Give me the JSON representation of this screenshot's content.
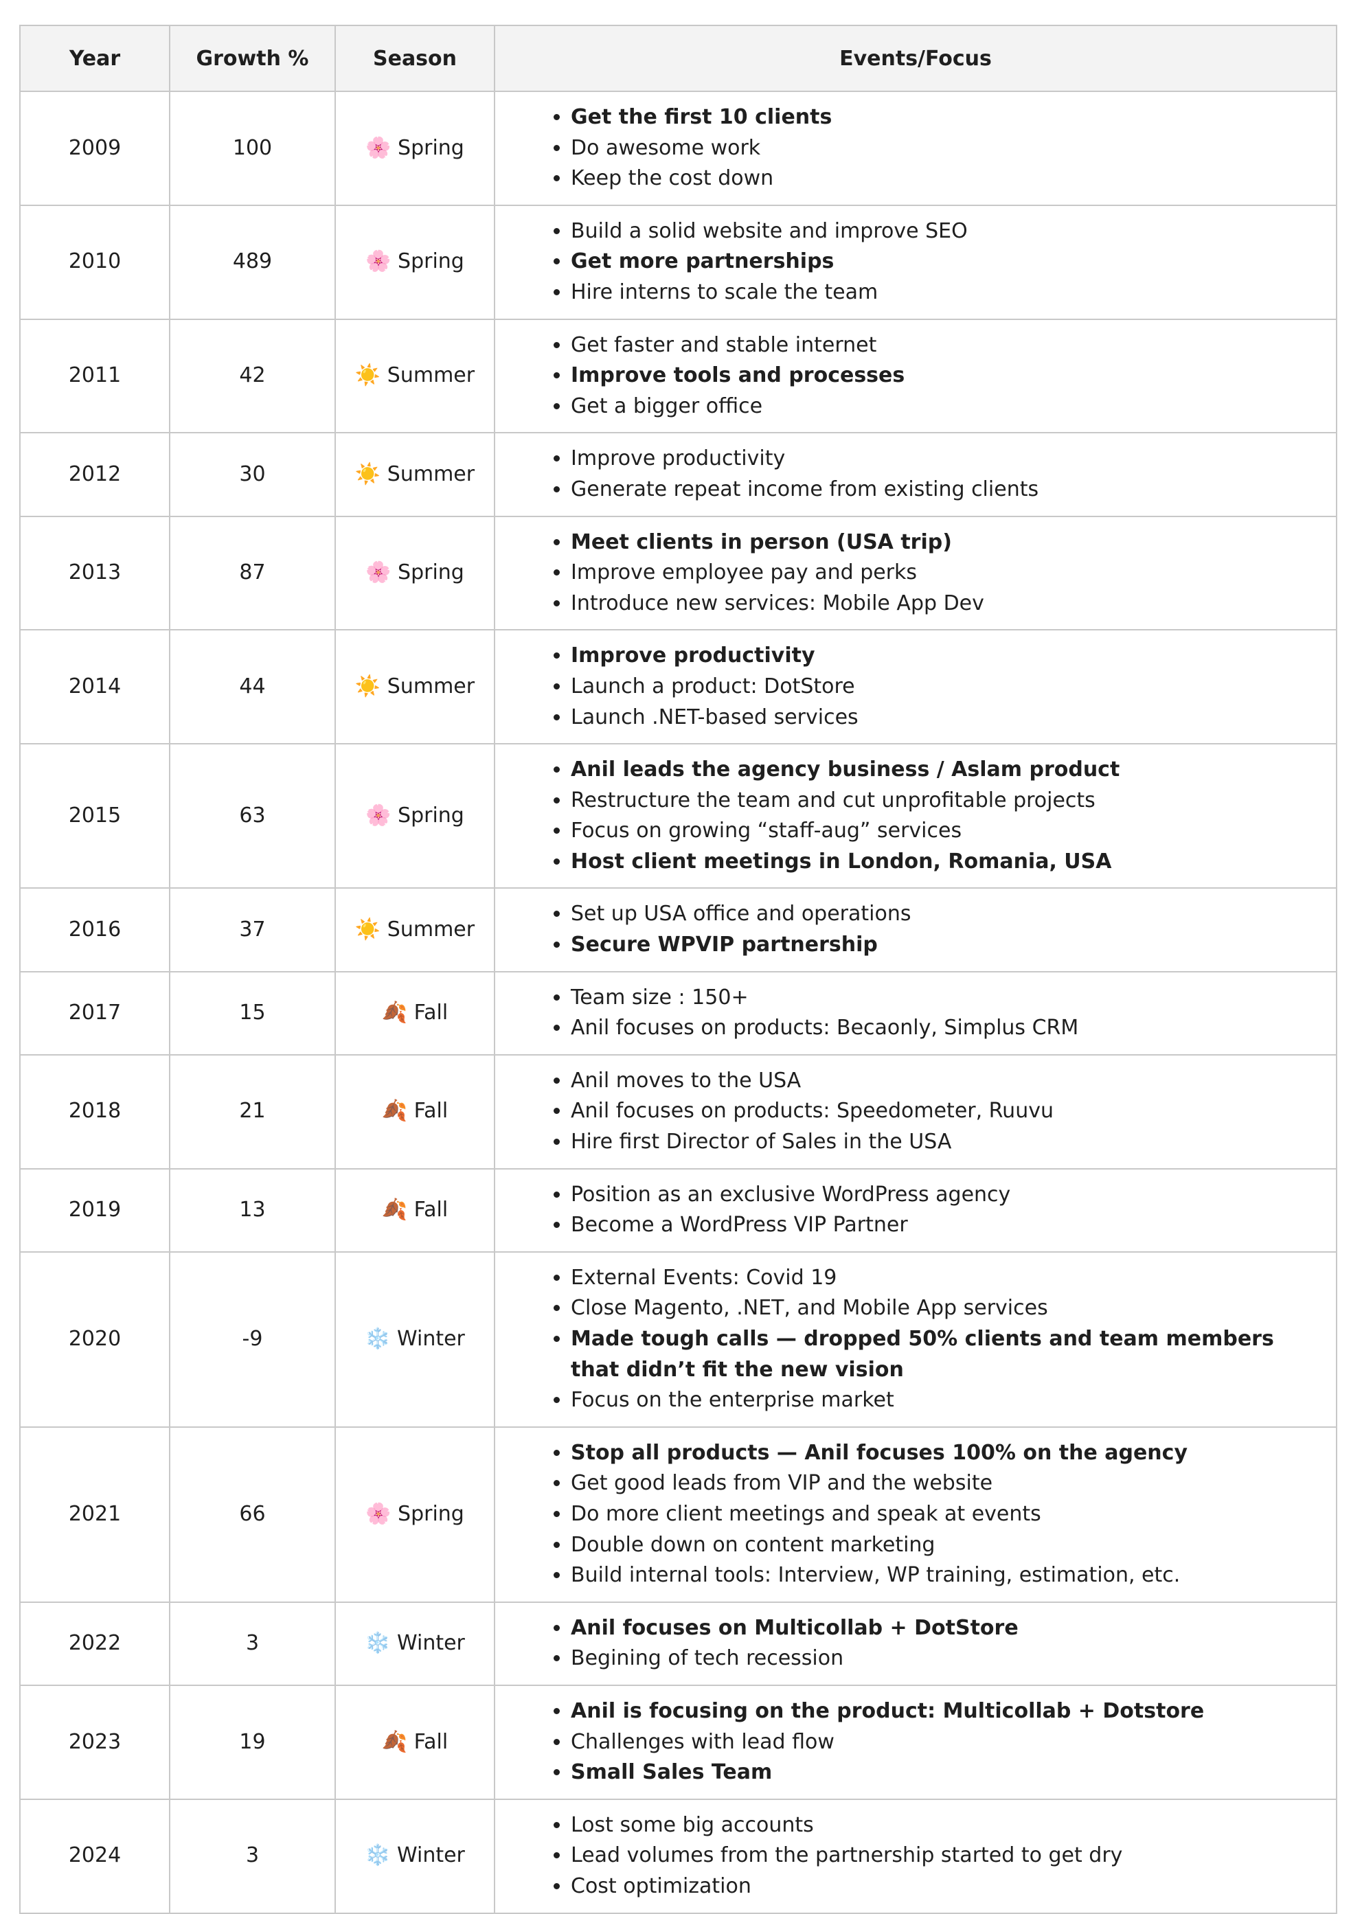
{
  "table": {
    "headers": [
      "Year",
      "Growth %",
      "Season",
      "Events/Focus"
    ],
    "rows": [
      {
        "year": "2009",
        "growth": "100",
        "season": "🌸 Spring",
        "events": [
          {
            "text": "Get the first 10 clients",
            "bold": true
          },
          {
            "text": "Do awesome work",
            "bold": false
          },
          {
            "text": "Keep the cost down",
            "bold": false
          }
        ]
      },
      {
        "year": "2010",
        "growth": "489",
        "season": "🌸 Spring",
        "events": [
          {
            "text": "Build a solid website and improve SEO",
            "bold": false
          },
          {
            "text": "Get more partnerships",
            "bold": true
          },
          {
            "text": "Hire interns to scale the team",
            "bold": false
          }
        ]
      },
      {
        "year": "2011",
        "growth": "42",
        "season": "☀️ Summer",
        "events": [
          {
            "text": "Get faster and stable internet",
            "bold": false
          },
          {
            "text": "Improve tools and processes",
            "bold": true
          },
          {
            "text": "Get a bigger office",
            "bold": false
          }
        ]
      },
      {
        "year": "2012",
        "growth": "30",
        "season": "☀️ Summer",
        "events": [
          {
            "text": "Improve productivity",
            "bold": false
          },
          {
            "text": "Generate repeat income from existing clients",
            "bold": false
          }
        ]
      },
      {
        "year": "2013",
        "growth": "87",
        "season": "🌸 Spring",
        "events": [
          {
            "text": "Meet clients in person (USA trip)",
            "bold": true
          },
          {
            "text": "Improve employee pay and perks",
            "bold": false
          },
          {
            "text": "Introduce new services: Mobile App Dev",
            "bold": false
          }
        ]
      },
      {
        "year": "2014",
        "growth": "44",
        "season": "☀️ Summer",
        "events": [
          {
            "text": "Improve productivity",
            "bold": true
          },
          {
            "text": "Launch a product: DotStore",
            "bold": false
          },
          {
            "text": "Launch .NET-based services",
            "bold": false
          }
        ]
      },
      {
        "year": "2015",
        "growth": "63",
        "season": "🌸 Spring",
        "events": [
          {
            "text": "Anil leads the agency business / Aslam product",
            "bold": true
          },
          {
            "text": "Restructure the team and cut unprofitable projects",
            "bold": false
          },
          {
            "text": "Focus on growing “staff-aug” services",
            "bold": false
          },
          {
            "text": "Host client meetings in London, Romania, USA",
            "bold": true
          }
        ]
      },
      {
        "year": "2016",
        "growth": "37",
        "season": "☀️ Summer",
        "events": [
          {
            "text": "Set up USA office and operations",
            "bold": false
          },
          {
            "text": "Secure WPVIP partnership",
            "bold": true
          }
        ]
      },
      {
        "year": "2017",
        "growth": "15",
        "season": "🍂 Fall",
        "events": [
          {
            "text": "Team size : 150+",
            "bold": false
          },
          {
            "text": "Anil focuses on products: Becaonly, Simplus CRM",
            "bold": false
          }
        ]
      },
      {
        "year": "2018",
        "growth": "21",
        "season": "🍂 Fall",
        "events": [
          {
            "text": "Anil moves to the USA",
            "bold": false
          },
          {
            "text": "Anil focuses on products: Speedometer, Ruuvu",
            "bold": false
          },
          {
            "text": "Hire first Director of Sales in the USA",
            "bold": false
          }
        ]
      },
      {
        "year": "2019",
        "growth": "13",
        "season": "🍂 Fall",
        "events": [
          {
            "text": "Position as an exclusive WordPress agency",
            "bold": false
          },
          {
            "text": "Become a WordPress VIP Partner",
            "bold": false
          }
        ]
      },
      {
        "year": "2020",
        "growth": "-9",
        "season": "❄️ Winter",
        "events": [
          {
            "text": "External Events: Covid 19",
            "bold": false
          },
          {
            "text": "Close Magento, .NET, and Mobile App services",
            "bold": false
          },
          {
            "text": "Made tough calls — dropped 50% clients and team members that didn’t fit the new vision",
            "bold": true
          },
          {
            "text": "Focus on the enterprise market",
            "bold": false
          }
        ]
      },
      {
        "year": "2021",
        "growth": "66",
        "season": "🌸 Spring",
        "events": [
          {
            "text": "Stop all products — Anil focuses 100% on the agency",
            "bold": true
          },
          {
            "text": "Get good leads from VIP and the website",
            "bold": false
          },
          {
            "text": "Do more client meetings and speak at events",
            "bold": false
          },
          {
            "text": "Double down on content marketing",
            "bold": false
          },
          {
            "text": "Build internal tools: Interview, WP training, estimation, etc.",
            "bold": false
          }
        ]
      },
      {
        "year": "2022",
        "growth": "3",
        "season": "❄️ Winter",
        "events": [
          {
            "text": "Anil focuses on Multicollab + DotStore",
            "bold": true
          },
          {
            "text": "Begining of tech recession",
            "bold": false
          }
        ]
      },
      {
        "year": "2023",
        "growth": "19",
        "season": "🍂 Fall",
        "events": [
          {
            "text": "Anil is focusing on the product: Multicollab + Dotstore",
            "bold": true
          },
          {
            "text": "Challenges with lead flow",
            "bold": false
          },
          {
            "text": "Small Sales Team",
            "bold": true
          }
        ]
      },
      {
        "year": "2024",
        "growth": "3",
        "season": "❄️ Winter",
        "events": [
          {
            "text": "Lost some big accounts",
            "bold": false
          },
          {
            "text": "Lead volumes from the partnership started to get dry",
            "bold": false
          },
          {
            "text": "Cost optimization",
            "bold": false
          }
        ]
      }
    ]
  }
}
